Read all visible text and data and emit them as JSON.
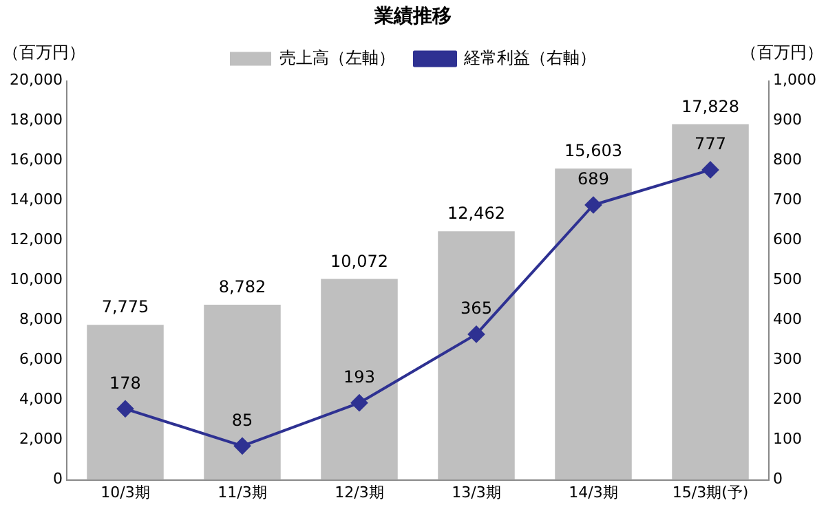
{
  "chart_data": {
    "type": "bar",
    "title": "業績推移",
    "ylabel": "（百万円）",
    "y2label": "（百万円）",
    "categories": [
      "10/3期",
      "11/3期",
      "12/3期",
      "13/3期",
      "14/3期",
      "15/3期(予)"
    ],
    "series": [
      {
        "name": "売上高（左軸）",
        "color": "#bfbfbf",
        "values": [
          7775,
          8782,
          10072,
          12462,
          15603,
          17828
        ],
        "value_labels": [
          "7,775",
          "8,782",
          "10,072",
          "12,462",
          "15,603",
          "17,828"
        ]
      },
      {
        "name": "経常利益（右軸）",
        "type": "line",
        "axis": "y2",
        "color": "#2e3192",
        "values": [
          178,
          85,
          193,
          365,
          689,
          777
        ],
        "value_labels": [
          "178",
          "85",
          "193",
          "365",
          "689",
          "777"
        ]
      }
    ],
    "ylim": [
      0,
      20000
    ],
    "yticks": [
      0,
      {
        "value": 2000,
        "label": "2,000"
      },
      {
        "value": 4000,
        "label": "4,000"
      },
      {
        "value": 6000,
        "label": "6,000"
      },
      {
        "value": 8000,
        "label": "8,000"
      },
      {
        "value": 10000,
        "label": "10,000"
      },
      {
        "value": 12000,
        "label": "12,000"
      },
      {
        "value": 14000,
        "label": "14,000"
      },
      {
        "value": 16000,
        "label": "16,000"
      },
      {
        "value": 18000,
        "label": "18,000"
      },
      {
        "value": 20000,
        "label": "20,000"
      }
    ],
    "y2lim": [
      0,
      1000
    ],
    "y2ticks": [
      0,
      100,
      200,
      300,
      400,
      500,
      600,
      700,
      800,
      900,
      {
        "value": 1000,
        "label": "1,000"
      }
    ],
    "grid": false,
    "legend": "top",
    "marker": "diamond",
    "line_style": "solid"
  }
}
